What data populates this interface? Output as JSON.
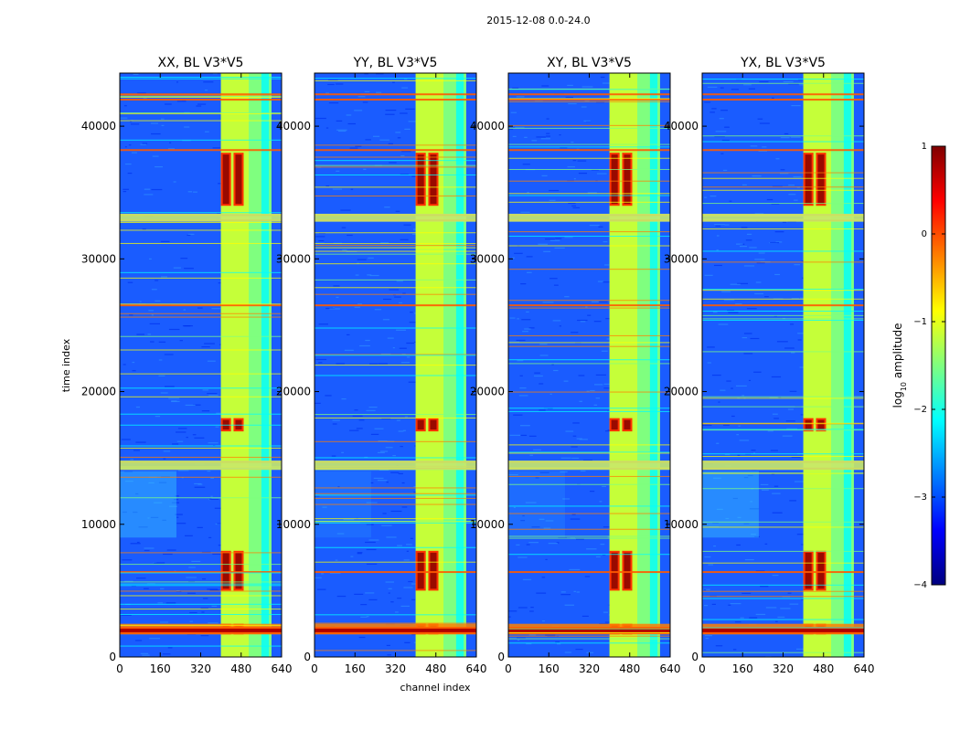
{
  "figure_title": "2015-12-08 0.0-24.0",
  "colors": {
    "jet": [
      "#00007f",
      "#0000ff",
      "#007fff",
      "#00ffff",
      "#7fff7f",
      "#ffff00",
      "#ff7f00",
      "#ff0000",
      "#7f0000"
    ],
    "frame": "#000000"
  },
  "chart_data": {
    "type": "heatmap",
    "xlabel": "channel index",
    "ylabel": "time index",
    "xlim": [
      0,
      640
    ],
    "ylim": [
      0,
      44000
    ],
    "xticks": [
      0,
      160,
      320,
      480,
      640
    ],
    "yticks": [
      0,
      10000,
      20000,
      30000,
      40000
    ],
    "panels": [
      {
        "title": "XX, BL V3*V5"
      },
      {
        "title": "YY, BL V3*V5"
      },
      {
        "title": "XY, BL V3*V5"
      },
      {
        "title": "YX, BL V3*V5"
      }
    ],
    "colorbar": {
      "label_prefix": "log",
      "label_sub": "10",
      "label_suffix": " amplitude",
      "range": [
        -4,
        1
      ],
      "ticks": [
        "1",
        "0",
        "−1",
        "−2",
        "−3",
        "−4"
      ]
    },
    "features": {
      "bright_channel_band": [
        400,
        600
      ],
      "saturated_channel_cols": [
        [
          400,
          440
        ],
        [
          450,
          490
        ]
      ],
      "horizontal_rfi_rows": [
        1800,
        2200,
        6400,
        14200,
        14700,
        26500,
        32900,
        33300,
        38200,
        42000,
        42400
      ],
      "bright_row_bands": [
        [
          1700,
          2500
        ],
        [
          5000,
          8000
        ],
        [
          17000,
          18000
        ],
        [
          34000,
          38000
        ]
      ]
    }
  }
}
